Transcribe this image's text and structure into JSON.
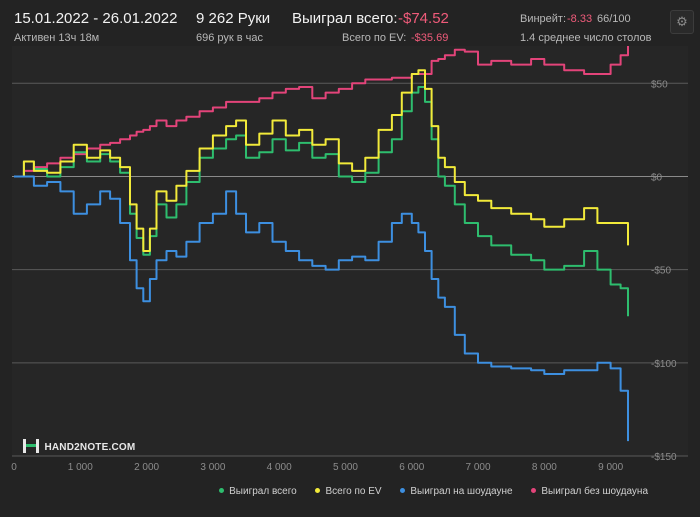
{
  "header": {
    "date_range": "15.01.2022 - 26.01.2022",
    "active_time": "Активен 13ч 18м",
    "hands": "9 262 Руки",
    "hands_per_hour": "696 рук в час",
    "won_total_label": "Выиграл всего:",
    "won_total_value": "-$74.52",
    "ev_total_label": "Всего по EV:",
    "ev_total_value": "-$35.69",
    "winrate_label": "Винрейт:",
    "winrate_value": "-8.33",
    "winrate_suffix": "66/100",
    "tables_avg": "1.4 среднее число столов"
  },
  "logo": {
    "text": "HAND2NOTE.COM"
  },
  "colors": {
    "background": "#232323",
    "plot_background": "#262626",
    "won_total": "#2ebd6e",
    "ev": "#f2ea3a",
    "showdown": "#3d8fe0",
    "non_showdown": "#e3447a",
    "negative_text": "#ef5b7a"
  },
  "icons": {
    "settings": "gear-icon",
    "logo": "hand2note-logo-icon"
  },
  "chart_data": {
    "type": "line",
    "xlim": [
      0,
      9262
    ],
    "ylim": [
      -150,
      70
    ],
    "x_ticks": [
      0,
      1000,
      2000,
      3000,
      4000,
      5000,
      6000,
      7000,
      8000,
      9000
    ],
    "x_tick_labels": [
      "0",
      "1 000",
      "2 000",
      "3 000",
      "4 000",
      "5 000",
      "6 000",
      "7 000",
      "8 000",
      "9 000"
    ],
    "y_ticks": [
      50,
      0,
      -50,
      -100,
      -150
    ],
    "y_tick_labels": [
      "$50",
      "$0",
      "-$50",
      "-$100",
      "-$150"
    ],
    "grid": "horizontal",
    "legend_position": "bottom-right",
    "series": [
      {
        "name": "Выиграл всего",
        "color": "#2ebd6e",
        "x": [
          0,
          150,
          300,
          500,
          700,
          900,
          1100,
          1300,
          1450,
          1600,
          1750,
          1850,
          1950,
          2050,
          2150,
          2300,
          2450,
          2600,
          2800,
          3000,
          3200,
          3350,
          3500,
          3700,
          3900,
          4100,
          4300,
          4500,
          4700,
          4900,
          5100,
          5300,
          5500,
          5700,
          5850,
          6000,
          6100,
          6200,
          6300,
          6400,
          6500,
          6650,
          6800,
          7000,
          7200,
          7500,
          7800,
          8000,
          8300,
          8600,
          8800,
          9000,
          9150,
          9262
        ],
        "y": [
          0,
          8,
          4,
          0,
          5,
          13,
          8,
          12,
          8,
          2,
          -20,
          -33,
          -42,
          -32,
          -15,
          -22,
          -15,
          -3,
          10,
          15,
          20,
          22,
          10,
          13,
          20,
          14,
          18,
          10,
          12,
          0,
          -3,
          2,
          13,
          20,
          35,
          45,
          48,
          40,
          20,
          0,
          -5,
          -15,
          -25,
          -32,
          -37,
          -42,
          -45,
          -50,
          -48,
          -40,
          -50,
          -58,
          -60,
          -75
        ]
      },
      {
        "name": "Всего по EV",
        "color": "#f2ea3a",
        "x": [
          0,
          150,
          300,
          500,
          700,
          900,
          1100,
          1300,
          1450,
          1600,
          1750,
          1850,
          1950,
          2050,
          2150,
          2300,
          2450,
          2600,
          2800,
          3000,
          3200,
          3350,
          3500,
          3700,
          3900,
          4100,
          4300,
          4500,
          4700,
          4900,
          5100,
          5300,
          5500,
          5700,
          5850,
          6000,
          6100,
          6200,
          6300,
          6400,
          6500,
          6650,
          6800,
          7000,
          7200,
          7500,
          7800,
          8000,
          8300,
          8600,
          8800,
          9000,
          9150,
          9262
        ],
        "y": [
          0,
          8,
          3,
          2,
          8,
          17,
          10,
          14,
          10,
          5,
          -15,
          -28,
          -40,
          -28,
          -8,
          -13,
          -5,
          3,
          15,
          22,
          27,
          30,
          17,
          23,
          30,
          22,
          25,
          17,
          20,
          7,
          3,
          10,
          25,
          33,
          45,
          55,
          57,
          47,
          27,
          10,
          5,
          -3,
          -10,
          -13,
          -17,
          -20,
          -23,
          -27,
          -23,
          -17,
          -25,
          -25,
          -25,
          -37
        ]
      },
      {
        "name": "Выиграл на шоудауне",
        "color": "#3d8fe0",
        "x": [
          0,
          150,
          300,
          500,
          700,
          900,
          1100,
          1300,
          1450,
          1600,
          1750,
          1850,
          1950,
          2050,
          2150,
          2300,
          2450,
          2600,
          2800,
          3000,
          3200,
          3350,
          3500,
          3700,
          3900,
          4100,
          4300,
          4500,
          4700,
          4900,
          5100,
          5300,
          5500,
          5700,
          5850,
          6000,
          6100,
          6200,
          6300,
          6400,
          6500,
          6650,
          6800,
          7000,
          7200,
          7500,
          7800,
          8000,
          8300,
          8600,
          8800,
          9000,
          9150,
          9262
        ],
        "y": [
          0,
          0,
          -5,
          -3,
          -8,
          -20,
          -15,
          -8,
          -12,
          -25,
          -45,
          -60,
          -67,
          -55,
          -45,
          -40,
          -43,
          -35,
          -25,
          -20,
          -8,
          -20,
          -30,
          -25,
          -35,
          -40,
          -45,
          -48,
          -50,
          -45,
          -43,
          -45,
          -35,
          -25,
          -20,
          -25,
          -30,
          -40,
          -55,
          -65,
          -70,
          -85,
          -95,
          -100,
          -102,
          -103,
          -104,
          -106,
          -104,
          -104,
          -100,
          -103,
          -115,
          -142
        ]
      },
      {
        "name": "Выиграл без шоудауна",
        "color": "#e3447a",
        "x": [
          0,
          150,
          300,
          500,
          700,
          900,
          1100,
          1300,
          1450,
          1600,
          1750,
          1850,
          1950,
          2050,
          2150,
          2300,
          2450,
          2600,
          2800,
          3000,
          3200,
          3350,
          3500,
          3700,
          3900,
          4100,
          4300,
          4500,
          4700,
          4900,
          5100,
          5300,
          5500,
          5700,
          5850,
          6000,
          6100,
          6200,
          6300,
          6400,
          6500,
          6650,
          6800,
          7000,
          7200,
          7500,
          7800,
          8000,
          8300,
          8600,
          8800,
          9000,
          9150,
          9262
        ],
        "y": [
          0,
          3,
          5,
          7,
          10,
          12,
          15,
          17,
          18,
          20,
          22,
          24,
          25,
          27,
          30,
          27,
          30,
          32,
          35,
          37,
          40,
          40,
          40,
          42,
          45,
          47,
          48,
          42,
          45,
          47,
          50,
          52,
          52,
          53,
          53,
          55,
          55,
          55,
          62,
          63,
          65,
          68,
          67,
          60,
          62,
          60,
          63,
          60,
          57,
          55,
          55,
          60,
          65,
          70
        ]
      }
    ]
  }
}
